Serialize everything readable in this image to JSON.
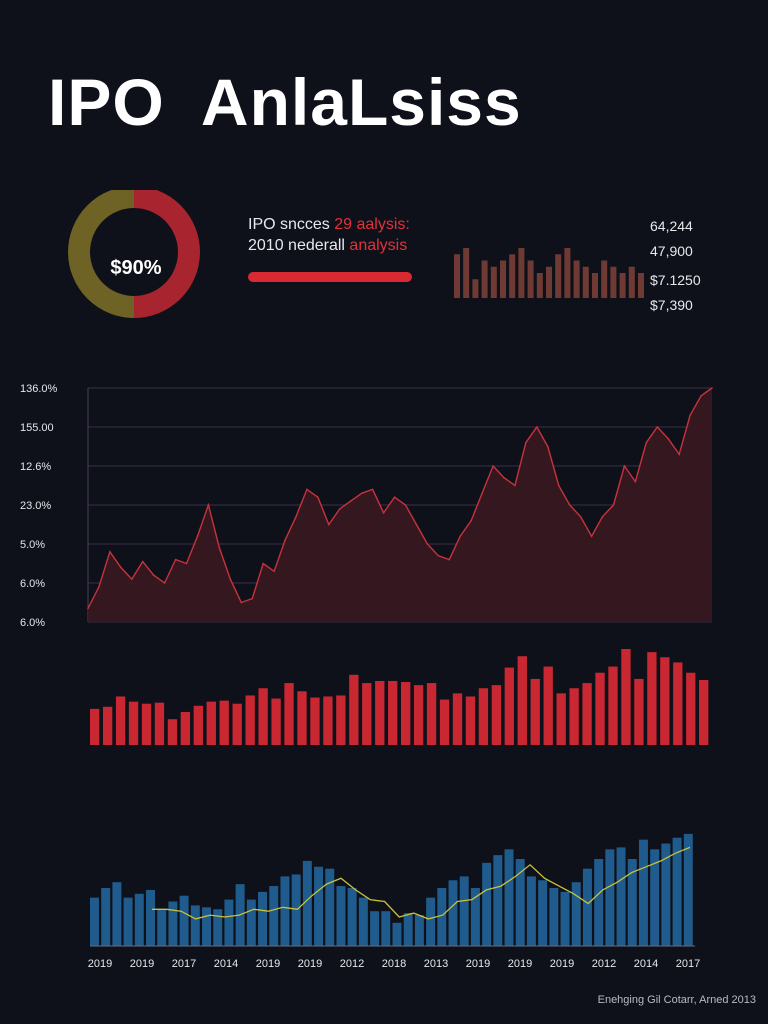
{
  "title": "IPO  AnlaLsiss",
  "donut": {
    "label": "$90%",
    "colors": [
      "#a82530",
      "#6e6224"
    ],
    "fractions": [
      0.5,
      0.5
    ]
  },
  "info": {
    "line1_a": "IPO sncces ",
    "line1_b": "29 aalysis:",
    "line2_a": "2010 nederall ",
    "line2_b": "analysis"
  },
  "mini_bars": {
    "color": "#6e3a33",
    "values": [
      7,
      8,
      3,
      6,
      5,
      6,
      7,
      8,
      6,
      4,
      5,
      7,
      8,
      6,
      5,
      4,
      6,
      5,
      4,
      5,
      4
    ]
  },
  "stats": [
    "64,244",
    "47,900",
    "$7.1250",
    "$7,390"
  ],
  "chart_data": [
    {
      "type": "area",
      "y_tick_labels": [
        "136.0%",
        "155.00",
        "12.6%",
        "23.0%",
        "5.0%",
        "6.0%",
        "6.0%"
      ],
      "ylim": [
        0,
        6
      ],
      "grid": true,
      "colors": {
        "line": "#c8323c",
        "fill": "#3a1820"
      },
      "values": [
        0.35,
        0.9,
        1.8,
        1.4,
        1.1,
        1.55,
        1.2,
        1.0,
        1.6,
        1.5,
        2.2,
        3.0,
        1.9,
        1.1,
        0.5,
        0.6,
        1.5,
        1.3,
        2.1,
        2.7,
        3.4,
        3.2,
        2.5,
        2.9,
        3.1,
        3.3,
        3.4,
        2.8,
        3.2,
        3.0,
        2.5,
        2.0,
        1.7,
        1.6,
        2.2,
        2.6,
        3.3,
        4.0,
        3.7,
        3.5,
        4.6,
        5.0,
        4.5,
        3.5,
        3.0,
        2.7,
        2.2,
        2.7,
        3.0,
        4.0,
        3.6,
        4.6,
        5.0,
        4.7,
        4.3,
        5.3,
        5.8,
        6.0
      ]
    },
    {
      "type": "bar",
      "color": "#c92731",
      "values": [
        3.5,
        3.7,
        4.7,
        4.2,
        4.0,
        4.1,
        2.5,
        3.2,
        3.8,
        4.2,
        4.3,
        4.0,
        4.8,
        5.5,
        4.5,
        6.0,
        5.2,
        4.6,
        4.7,
        4.8,
        6.8,
        6.0,
        6.2,
        6.2,
        6.1,
        5.8,
        6.0,
        4.4,
        5.0,
        4.7,
        5.5,
        5.8,
        7.5,
        8.6,
        6.4,
        7.6,
        5.0,
        5.5,
        6.0,
        7.0,
        7.6,
        9.3,
        6.4,
        9.0,
        8.5,
        8.0,
        7.0,
        6.3
      ]
    },
    {
      "type": "bar",
      "colors": {
        "bar": "#1f5b8c",
        "line": "#c8c23a"
      },
      "x_tick_labels": [
        "2019",
        "2019",
        "2017",
        "2014",
        "2019",
        "2019",
        "2012",
        "2018",
        "2013",
        "2019",
        "2019",
        "2019",
        "2012",
        "2014",
        "2017"
      ],
      "values": [
        2.5,
        3.0,
        3.3,
        2.5,
        2.7,
        2.9,
        1.9,
        2.3,
        2.6,
        2.1,
        2.0,
        1.9,
        2.4,
        3.2,
        2.4,
        2.8,
        3.1,
        3.6,
        3.7,
        4.4,
        4.1,
        4.0,
        3.1,
        3.0,
        2.5,
        1.8,
        1.8,
        1.2,
        1.7,
        1.6,
        2.5,
        3.0,
        3.4,
        3.6,
        3.0,
        4.3,
        4.7,
        5.0,
        4.5,
        3.6,
        3.4,
        3.0,
        2.8,
        3.3,
        4.0,
        4.5,
        5.0,
        5.1,
        4.5,
        5.5,
        5.0,
        5.3,
        5.6,
        5.8
      ],
      "line_values": [
        1.9,
        1.9,
        1.8,
        1.4,
        1.6,
        1.5,
        1.6,
        1.9,
        1.8,
        2.0,
        1.9,
        2.6,
        3.2,
        3.5,
        2.9,
        2.4,
        2.3,
        1.5,
        1.7,
        1.4,
        1.6,
        2.3,
        2.4,
        2.9,
        3.1,
        3.6,
        4.2,
        3.5,
        3.1,
        2.7,
        2.2,
        2.9,
        3.3,
        3.8,
        4.1,
        4.4,
        4.8,
        5.1
      ]
    }
  ],
  "footer": "Enehging Gil Cotarr, Arned 2013"
}
